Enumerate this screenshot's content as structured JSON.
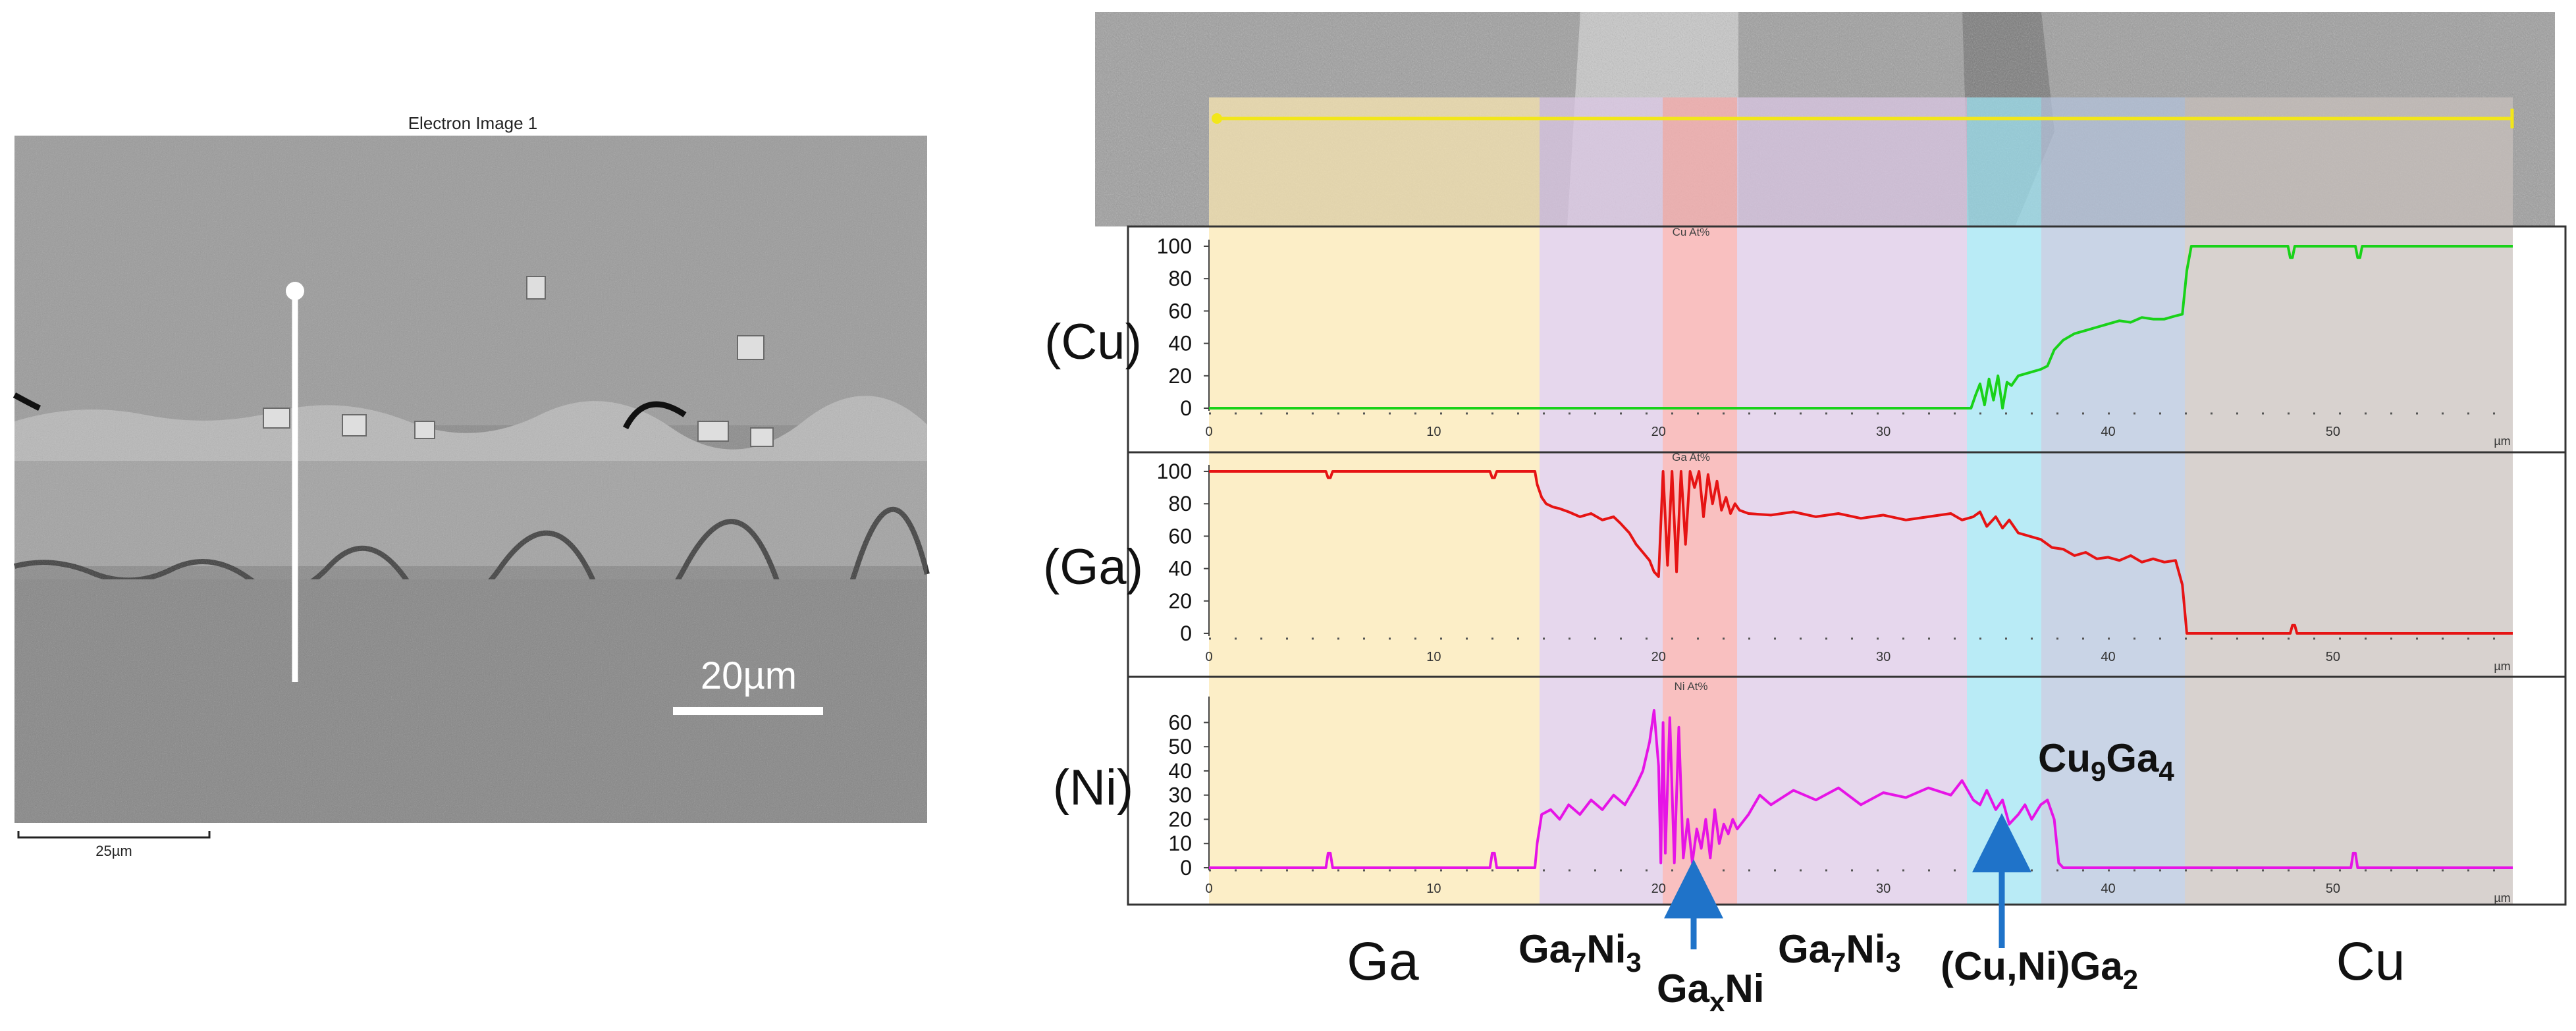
{
  "sem": {
    "title": "Electron Image 1",
    "scale_label": "20µm",
    "bottom_scale_label": "25µm"
  },
  "colors": {
    "ga_region": "#fbe7b1",
    "ga7ni3_region": "#dcc7e6",
    "gaxni_region": "#f7a8a8",
    "cuniga2_region": "#9ee3f3",
    "cu9ga4_region": "#b4c4dc",
    "cu_region": "#c9c1bc",
    "cu_line": "#19d219",
    "ga_line": "#e61414",
    "ni_line": "#e614e6",
    "arrow": "#1f73c9",
    "scan_line": "#f2e61a"
  },
  "chart_data": [
    {
      "type": "line",
      "title": "Cu At%",
      "side_label": "(Cu)",
      "xlabel": "µm",
      "xlim": [
        0,
        58
      ],
      "ylim": [
        0,
        100
      ],
      "xticks": [
        0,
        10,
        20,
        30,
        40,
        50
      ],
      "yticks": [
        0,
        20,
        40,
        60,
        80,
        100
      ],
      "series": [
        {
          "name": "Cu",
          "color": "#19d219",
          "x": [
            0,
            10,
            20,
            33.9,
            34.1,
            34.3,
            34.5,
            34.7,
            34.9,
            35.1,
            35.3,
            35.5,
            35.7,
            36,
            36.5,
            37,
            37.3,
            37.6,
            38,
            38.5,
            39,
            39.5,
            40,
            40.5,
            41,
            41.5,
            42,
            42.5,
            43,
            43.3,
            43.5,
            43.7,
            44,
            46,
            48,
            48.1,
            48.2,
            48.3,
            49,
            50,
            51,
            51.1,
            51.2,
            51.3,
            52,
            54,
            58
          ],
          "y": [
            0,
            0,
            0,
            0,
            8,
            15,
            2,
            18,
            5,
            20,
            0,
            16,
            14,
            20,
            22,
            24,
            26,
            36,
            42,
            46,
            48,
            50,
            52,
            54,
            53,
            56,
            55,
            55,
            57,
            58,
            85,
            100,
            100,
            100,
            100,
            93,
            93,
            100,
            100,
            100,
            100,
            93,
            93,
            100,
            100,
            100,
            100
          ]
        }
      ]
    },
    {
      "type": "line",
      "title": "Ga At%",
      "side_label": "(Ga)",
      "xlabel": "µm",
      "xlim": [
        0,
        58
      ],
      "ylim": [
        0,
        100
      ],
      "xticks": [
        0,
        10,
        20,
        30,
        40,
        50
      ],
      "yticks": [
        0,
        20,
        40,
        60,
        80,
        100
      ],
      "series": [
        {
          "name": "Ga",
          "color": "#e61414",
          "x": [
            0,
            4,
            5.2,
            5.3,
            5.4,
            5.5,
            5.6,
            10,
            12.5,
            12.6,
            12.7,
            12.8,
            12.9,
            14.5,
            14.6,
            14.8,
            15,
            15.3,
            15.6,
            16,
            16.5,
            17,
            17.5,
            18,
            18.3,
            18.7,
            19,
            19.3,
            19.6,
            19.8,
            20,
            20.2,
            20.4,
            20.6,
            20.8,
            21,
            21.2,
            21.4,
            21.6,
            21.8,
            22,
            22.2,
            22.4,
            22.6,
            22.8,
            23,
            23.2,
            23.4,
            23.6,
            24,
            25,
            26,
            27,
            28,
            29,
            30,
            31,
            32,
            33,
            33.5,
            34,
            34.3,
            34.6,
            35,
            35.3,
            35.6,
            36,
            36.5,
            37,
            37.5,
            38,
            38.5,
            39,
            39.5,
            40,
            40.5,
            41,
            41.5,
            42,
            42.5,
            43,
            43.3,
            43.5,
            43.7,
            44,
            47,
            48.1,
            48.2,
            48.3,
            48.4,
            48.5,
            52,
            58
          ],
          "y": [
            100,
            100,
            100,
            96,
            96,
            100,
            100,
            100,
            100,
            96,
            96,
            100,
            100,
            100,
            92,
            84,
            80,
            78,
            77,
            75,
            72,
            74,
            70,
            72,
            68,
            62,
            55,
            50,
            45,
            38,
            35,
            100,
            42,
            100,
            38,
            100,
            55,
            100,
            90,
            100,
            72,
            98,
            80,
            94,
            76,
            84,
            74,
            80,
            76,
            74,
            73,
            75,
            72,
            74,
            71,
            73,
            70,
            72,
            74,
            70,
            72,
            75,
            66,
            72,
            65,
            70,
            62,
            60,
            58,
            53,
            52,
            48,
            50,
            46,
            47,
            45,
            48,
            44,
            46,
            44,
            45,
            30,
            0,
            0,
            0,
            0,
            0,
            5,
            5,
            0,
            0,
            0,
            0
          ]
        }
      ]
    },
    {
      "type": "line",
      "title": "Ni At%",
      "side_label": "(Ni)",
      "xlabel": "µm",
      "xlim": [
        0,
        58
      ],
      "ylim": [
        0,
        68
      ],
      "xticks": [
        0,
        10,
        20,
        30,
        40,
        50
      ],
      "yticks": [
        0,
        10,
        20,
        30,
        40,
        50,
        60
      ],
      "series": [
        {
          "name": "Ni",
          "color": "#e614e6",
          "x": [
            0,
            4,
            5.2,
            5.3,
            5.4,
            5.5,
            5.6,
            10,
            12.5,
            12.6,
            12.7,
            12.8,
            12.9,
            14.5,
            14.6,
            14.8,
            15.2,
            15.6,
            16,
            16.5,
            17,
            17.5,
            18,
            18.5,
            19,
            19.3,
            19.6,
            19.8,
            20,
            20.1,
            20.2,
            20.3,
            20.5,
            20.7,
            20.9,
            21.1,
            21.3,
            21.5,
            21.7,
            21.9,
            22.1,
            22.3,
            22.5,
            22.7,
            22.9,
            23.1,
            23.3,
            23.5,
            24,
            24.5,
            25,
            26,
            27,
            28,
            29,
            30,
            31,
            32,
            33,
            33.5,
            34,
            34.3,
            34.6,
            35,
            35.3,
            35.6,
            36,
            36.3,
            36.6,
            37,
            37.3,
            37.6,
            37.8,
            38,
            40,
            50.8,
            50.9,
            51,
            51.1,
            51.2,
            58
          ],
          "y": [
            0,
            0,
            0,
            6,
            6,
            0,
            0,
            0,
            0,
            6,
            6,
            0,
            0,
            0,
            10,
            22,
            24,
            20,
            26,
            22,
            28,
            24,
            30,
            26,
            34,
            40,
            52,
            65,
            42,
            2,
            60,
            6,
            62,
            2,
            58,
            4,
            20,
            2,
            16,
            8,
            20,
            4,
            24,
            10,
            18,
            14,
            20,
            16,
            22,
            30,
            26,
            32,
            28,
            33,
            26,
            31,
            29,
            33,
            30,
            36,
            28,
            26,
            32,
            24,
            28,
            18,
            22,
            26,
            20,
            26,
            28,
            20,
            2,
            0,
            0,
            0,
            6,
            6,
            0,
            0,
            0
          ]
        }
      ]
    }
  ],
  "phase_labels": {
    "ga": "Ga",
    "ga7ni3_left": {
      "main": "Ga",
      "sub1": "7",
      "mid": "Ni",
      "sub2": "3"
    },
    "gaxni": {
      "main": "Ga",
      "sub1": "x",
      "mid": "Ni"
    },
    "ga7ni3_right": {
      "main": "Ga",
      "sub1": "7",
      "mid": "Ni",
      "sub2": "3"
    },
    "cuniga2": {
      "main": "(Cu,Ni)Ga",
      "sub1": "2"
    },
    "cu9ga4": {
      "main": "Cu",
      "sub1": "9",
      "mid": "Ga",
      "sub2": "4"
    },
    "cu": "Cu"
  }
}
